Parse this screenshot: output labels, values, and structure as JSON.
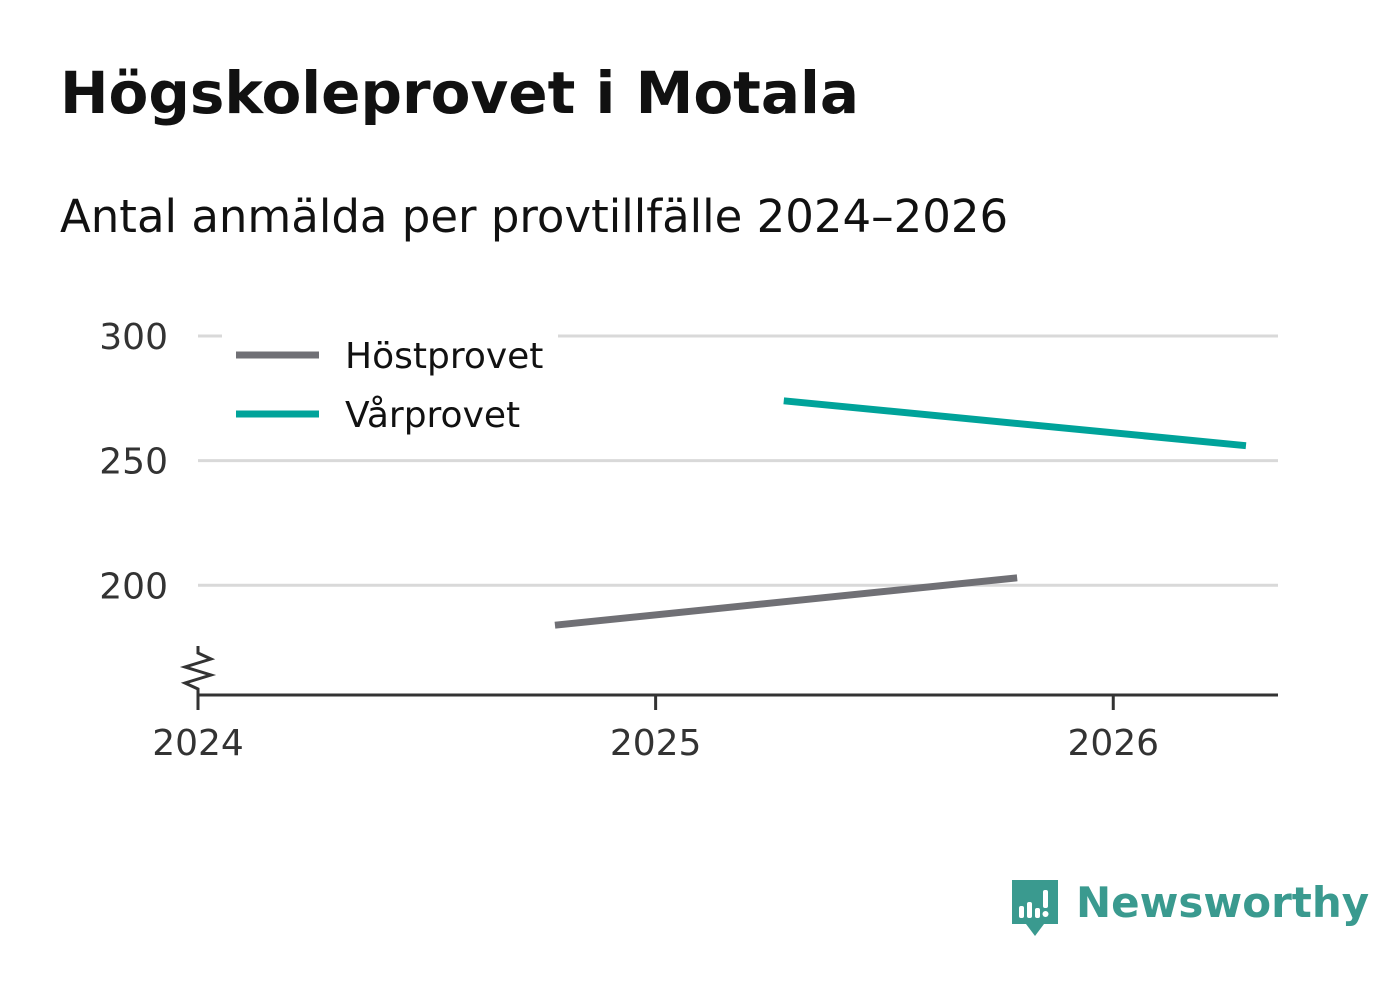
{
  "header": {
    "title": "Högskoleprovet i Motala",
    "subtitle": "Antal anmälda per provtillfälle 2024–2026"
  },
  "brand": {
    "name": "Newsworthy",
    "color": "#3a9a8f"
  },
  "chart_data": {
    "type": "line",
    "title": "Högskoleprovet i Motala",
    "subtitle": "Antal anmälda per provtillfälle 2024–2026",
    "xlabel": "",
    "ylabel": "",
    "xlim": [
      2024,
      2026.36
    ],
    "ylim": [
      156,
      300
    ],
    "x_ticks": [
      "2024",
      "2025",
      "2026"
    ],
    "y_ticks": [
      "300",
      "250",
      "200"
    ],
    "grid": true,
    "axis_break": true,
    "legend_position": "top-left",
    "series": [
      {
        "name": "Höstprovet",
        "color": "#707075",
        "x": [
          2024.78,
          2025.79
        ],
        "y": [
          184,
          203
        ]
      },
      {
        "name": "Vårprovet",
        "color": "#00a39a",
        "x": [
          2025.28,
          2026.29
        ],
        "y": [
          274,
          256
        ]
      }
    ]
  }
}
